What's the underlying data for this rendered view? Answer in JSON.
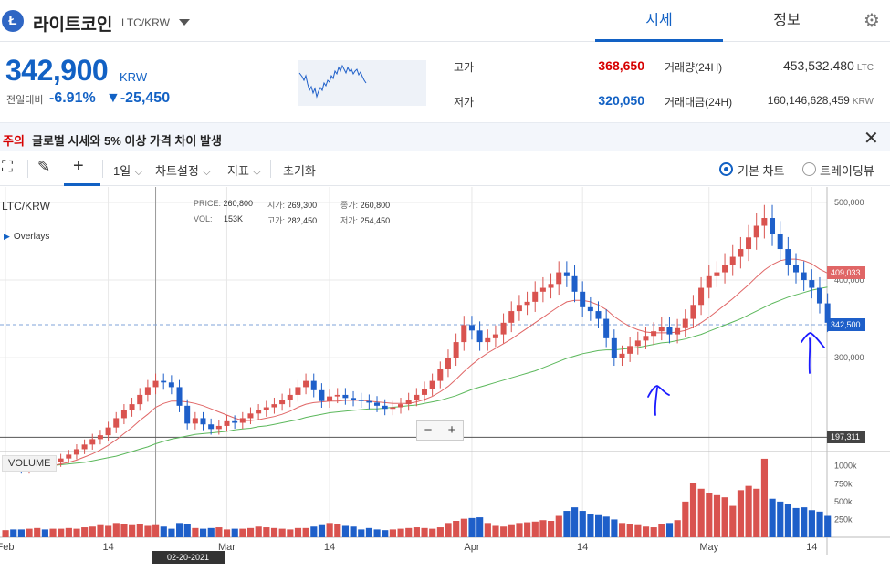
{
  "header": {
    "coin_logo": "Ł",
    "coin_name": "라이트코인",
    "coin_pair": "LTC/KRW",
    "tabs": [
      {
        "label": "시세",
        "active": true
      },
      {
        "label": "정보",
        "active": false
      }
    ],
    "settings_icon": "gear-icon"
  },
  "summary": {
    "price": "342,900",
    "price_unit": "KRW",
    "change_label": "전일대비",
    "change_rate": "-6.91%",
    "change_amount": "▼-25,450",
    "high_label": "고가",
    "high_value": "368,650",
    "low_label": "저가",
    "low_value": "320,050",
    "volume_label": "거래량(24H)",
    "volume_value": "453,532.480",
    "volume_unit": "LTC",
    "turnover_label": "거래대금(24H)",
    "turnover_value": "160,146,628,459",
    "turnover_unit": "KRW"
  },
  "notice": {
    "tag": "주의",
    "text": "글로벌 시세와 5% 이상 가격 차이 발생",
    "close_icon": "close-icon"
  },
  "toolbar": {
    "interval": "1일",
    "chart_settings": "차트설정",
    "indicators": "지표",
    "reset": "초기화",
    "basic_chart": "기본 차트",
    "trading_view": "트레이딩뷰"
  },
  "chart_data": {
    "type": "candlestick",
    "title": "LTC/KRW",
    "overlays_label": "Overlays",
    "info": {
      "price_label": "PRICE:",
      "price": "260,800",
      "open_label": "시가:",
      "open": "269,300",
      "close_label": "종가:",
      "close": "260,800",
      "vol_label": "VOL:",
      "vol": "153K",
      "high_label": "고가:",
      "high": "282,450",
      "low_label": "저가:",
      "low": "254,450"
    },
    "y_ticks": [
      "500,000",
      "400,000",
      "300,000"
    ],
    "y_tick_values": [
      500000,
      400000,
      300000
    ],
    "ylim": [
      179000,
      520000
    ],
    "x_ticks": [
      "Feb",
      "14",
      "Mar",
      "14",
      "Apr",
      "14",
      "May",
      "14"
    ],
    "x_tick_days": [
      0,
      13,
      28,
      41,
      59,
      73,
      89,
      102
    ],
    "volume_label": "VOLUME",
    "volume_ticks": [
      "1000k",
      "750k",
      "500k",
      "250k"
    ],
    "volume_tick_values": [
      1000,
      750,
      500,
      250
    ],
    "volume_max": 1150,
    "crosshair_date": "02-20-2021",
    "crosshair_day": 19,
    "price_labels": {
      "ma_short": "409,033",
      "current": "342,500",
      "low_line": "197,311"
    },
    "price_label_values": {
      "ma_short": 409033,
      "current": 342500,
      "low_line": 197311
    },
    "candles_close": [
      160000,
      158000,
      156000,
      158000,
      162000,
      161000,
      165000,
      170000,
      175000,
      182000,
      188000,
      195000,
      200000,
      210000,
      222000,
      232000,
      240000,
      252000,
      262000,
      270000,
      268000,
      262000,
      238000,
      215000,
      222000,
      214000,
      208000,
      212000,
      218000,
      216000,
      222000,
      228000,
      232000,
      236000,
      240000,
      245000,
      252000,
      262000,
      270000,
      258000,
      244000,
      250000,
      252000,
      248000,
      246000,
      244000,
      242000,
      238000,
      234000,
      236000,
      240000,
      246000,
      252000,
      260000,
      270000,
      285000,
      300000,
      320000,
      342000,
      335000,
      320000,
      325000,
      330000,
      345000,
      360000,
      368000,
      372000,
      385000,
      390000,
      395000,
      410000,
      405000,
      385000,
      365000,
      360000,
      350000,
      325000,
      300000,
      305000,
      315000,
      322000,
      328000,
      334000,
      340000,
      330000,
      338000,
      350000,
      368000,
      390000,
      405000,
      410000,
      420000,
      430000,
      440000,
      455000,
      470000,
      480000,
      460000,
      440000,
      420000,
      410000,
      400000,
      390000,
      370000,
      345000
    ],
    "volumes": [
      100,
      110,
      110,
      120,
      130,
      110,
      120,
      120,
      130,
      120,
      140,
      150,
      170,
      160,
      200,
      190,
      170,
      180,
      160,
      170,
      150,
      120,
      200,
      180,
      130,
      120,
      130,
      140,
      110,
      120,
      120,
      130,
      150,
      140,
      130,
      120,
      110,
      130,
      130,
      150,
      170,
      200,
      190,
      160,
      150,
      110,
      130,
      110,
      100,
      110,
      120,
      130,
      140,
      130,
      120,
      140,
      200,
      230,
      260,
      270,
      280,
      200,
      160,
      150,
      170,
      200,
      210,
      220,
      240,
      230,
      300,
      370,
      420,
      370,
      330,
      310,
      290,
      250,
      200,
      190,
      170,
      150,
      140,
      180,
      200,
      240,
      500,
      760,
      680,
      620,
      590,
      560,
      440,
      660,
      720,
      680,
      1100,
      540,
      500,
      460,
      410,
      420,
      380,
      360,
      300
    ],
    "ma_short": [
      160000,
      159000,
      159000,
      159000,
      160000,
      160000,
      161000,
      163000,
      165000,
      168000,
      172000,
      176000,
      181000,
      187000,
      194000,
      202000,
      210000,
      219000,
      227000,
      236000,
      241000,
      244000,
      244000,
      243000,
      241000,
      238000,
      234000,
      230000,
      226000,
      222000,
      219000,
      219000,
      220000,
      222000,
      224000,
      227000,
      231000,
      236000,
      240000,
      242000,
      243000,
      244000,
      244000,
      245000,
      245000,
      245000,
      244000,
      243000,
      242000,
      241000,
      241000,
      241000,
      243000,
      246000,
      250000,
      256000,
      263000,
      272000,
      282000,
      291000,
      299000,
      306000,
      312000,
      318000,
      324000,
      331000,
      338000,
      345000,
      352000,
      359000,
      366000,
      372000,
      374000,
      374000,
      372000,
      368000,
      362000,
      353000,
      346000,
      340000,
      336000,
      333000,
      332000,
      332000,
      332000,
      333000,
      335000,
      339000,
      345000,
      352000,
      360000,
      368000,
      376000,
      385000,
      394000,
      404000,
      413000,
      420000,
      425000,
      427000,
      427000,
      425000,
      421000,
      414000,
      409000
    ],
    "ma_long": [
      162000,
      161000,
      161000,
      161000,
      161000,
      161000,
      161000,
      162000,
      163000,
      164000,
      165000,
      167000,
      169000,
      171000,
      173000,
      176000,
      179000,
      182000,
      185000,
      189000,
      192000,
      195000,
      197000,
      199000,
      201000,
      202000,
      203000,
      204000,
      205000,
      207000,
      208000,
      209000,
      211000,
      212000,
      214000,
      216000,
      218000,
      220000,
      223000,
      225000,
      227000,
      229000,
      230000,
      231000,
      232000,
      233000,
      234000,
      234000,
      235000,
      236000,
      237000,
      238000,
      239000,
      241000,
      243000,
      245000,
      248000,
      251000,
      255000,
      259000,
      262000,
      265000,
      268000,
      271000,
      274000,
      277000,
      280000,
      283000,
      287000,
      291000,
      295000,
      299000,
      302000,
      305000,
      307000,
      309000,
      310000,
      310000,
      311000,
      312000,
      313000,
      315000,
      317000,
      319000,
      320000,
      322000,
      324000,
      327000,
      330000,
      334000,
      338000,
      342000,
      346000,
      350000,
      355000,
      360000,
      365000,
      370000,
      374000,
      378000,
      381000,
      384000,
      387000,
      389000,
      391000
    ]
  },
  "colors": {
    "accent": "#1261c4",
    "up": "#d9534f",
    "down": "#1e5fc9",
    "ma_short": "#e06666",
    "ma_long": "#5cb85c",
    "notice_red": "#d60000",
    "annotation": "#1a1aff"
  }
}
